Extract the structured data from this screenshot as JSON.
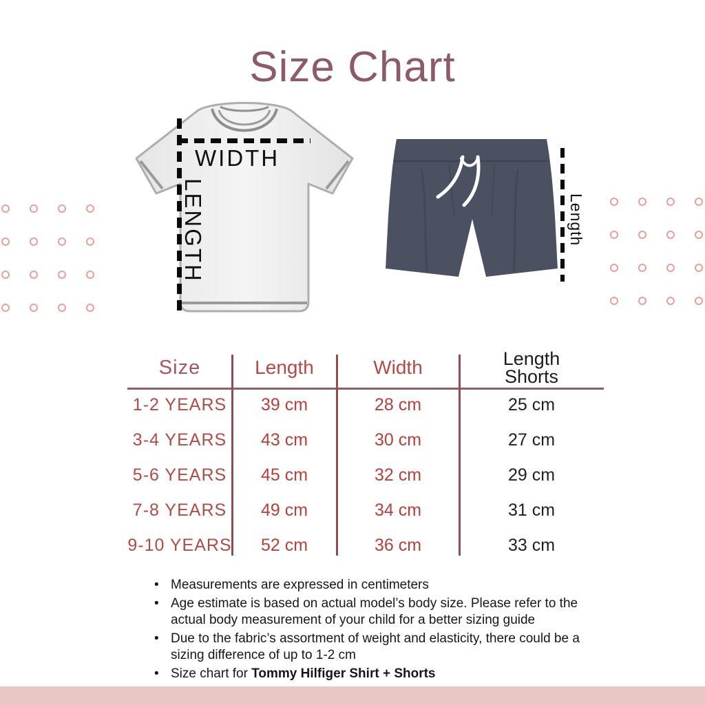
{
  "title": "Size Chart",
  "illustrations": {
    "shirt": {
      "width_label": "WIDTH",
      "length_label": "LENGTH"
    },
    "shorts": {
      "length_label": "Length"
    }
  },
  "table": {
    "headers": {
      "size": "Size",
      "length": "Length",
      "width": "Width",
      "shorts_line1": "Length",
      "shorts_line2": "Shorts"
    },
    "rows": [
      {
        "size": "1-2 YEARS",
        "length": "39 cm",
        "width": "28 cm",
        "shorts": "25 cm"
      },
      {
        "size": "3-4 YEARS",
        "length": "43 cm",
        "width": "30 cm",
        "shorts": "27 cm"
      },
      {
        "size": "5-6 YEARS",
        "length": "45 cm",
        "width": "32 cm",
        "shorts": "29 cm"
      },
      {
        "size": "7-8 YEARS",
        "length": "49 cm",
        "width": "34 cm",
        "shorts": "31 cm"
      },
      {
        "size": "9-10 YEARS",
        "length": "52 cm",
        "width": "36 cm",
        "shorts": "33 cm"
      }
    ]
  },
  "chart_data": {
    "type": "table",
    "title": "Size Chart",
    "columns": [
      "Size",
      "Length",
      "Width",
      "Length Shorts"
    ],
    "rows": [
      [
        "1-2 YEARS",
        "39 cm",
        "28 cm",
        "25 cm"
      ],
      [
        "3-4 YEARS",
        "43 cm",
        "30 cm",
        "27 cm"
      ],
      [
        "5-6 YEARS",
        "45 cm",
        "32 cm",
        "29 cm"
      ],
      [
        "7-8 YEARS",
        "49 cm",
        "34 cm",
        "31 cm"
      ],
      [
        "9-10 YEARS",
        "52 cm",
        "36 cm",
        "33 cm"
      ]
    ],
    "units": "cm"
  },
  "notes": [
    {
      "text": "Measurements are expressed in centimeters"
    },
    {
      "text": "Age estimate is based on actual model’s body size.  Please refer to the actual body measurement of your child for a better sizing guide"
    },
    {
      "text": "Due to the fabric’s assortment of weight and elasticity, there could be a sizing difference of up to 1-2 cm"
    },
    {
      "text": "Size chart for ",
      "bold": "Tommy Hilfiger Shirt + Shorts"
    }
  ],
  "colors": {
    "title": "#8d5a6b",
    "header_size": "#a4565e",
    "header_red": "#b24a48",
    "row_age": "#ad4d48",
    "row_value": "#b2423e",
    "row_black": "#1f1f1f",
    "table_line_horizontal": "#8d6064",
    "table_line_vertical": "#8d4d55",
    "dots": "#e5a19b",
    "footer_bar": "#e8c8c4",
    "shorts_fill": "#4c5161",
    "shirt_fill": "#ededed",
    "dashed_line": "#0a0a0a"
  },
  "decor": {
    "dot_grids": 2,
    "dots_per_grid": 16
  }
}
